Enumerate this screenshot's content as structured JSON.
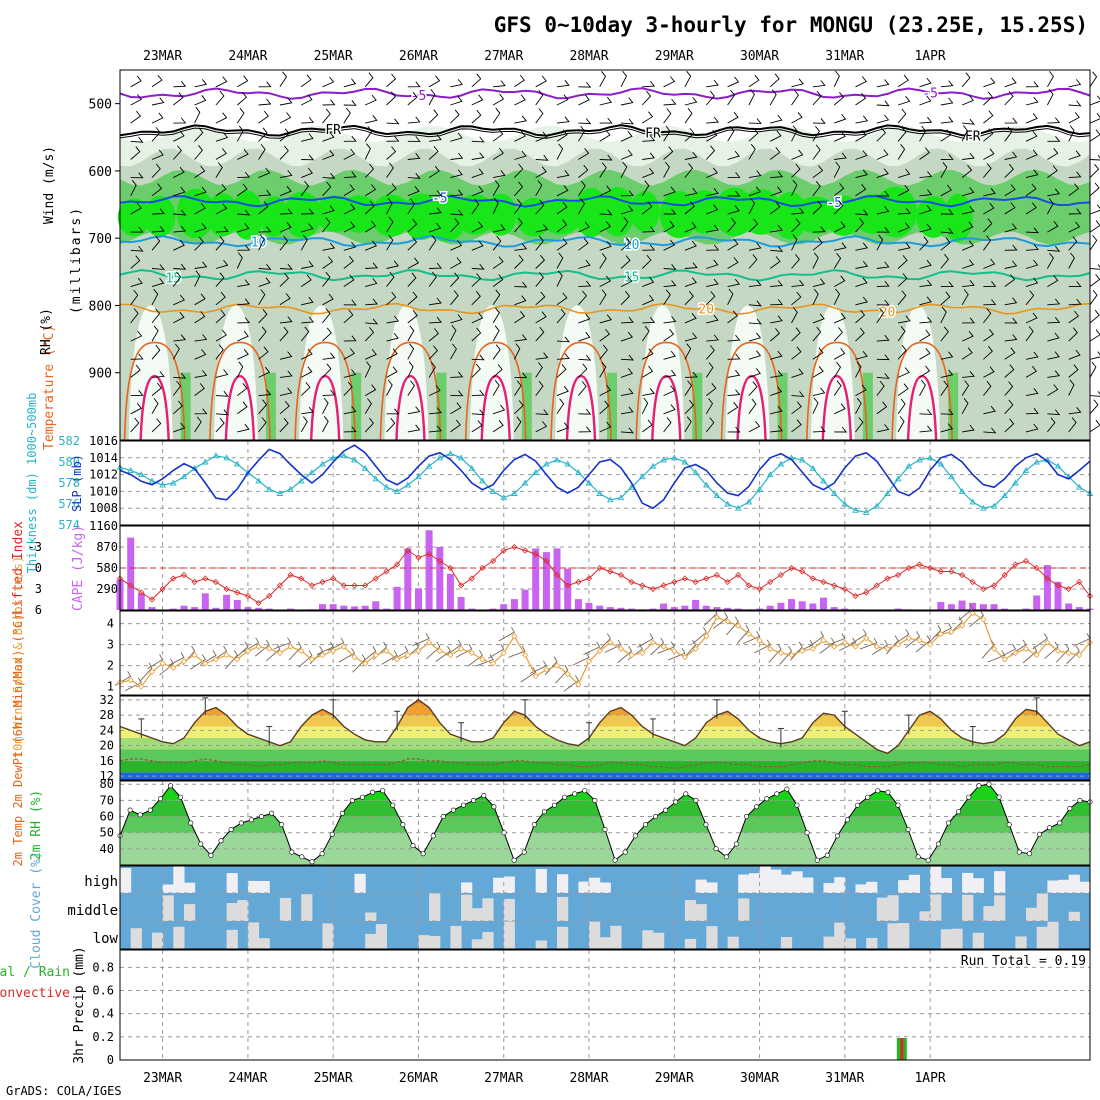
{
  "title": "GFS 0~10day 3-hourly for MONGU (23.25E, 15.25S)",
  "footer": "GrADS: COLA/IGES",
  "dates": [
    "23MAR",
    "24MAR",
    "25MAR",
    "26MAR",
    "27MAR",
    "28MAR",
    "29MAR",
    "30MAR",
    "31MAR",
    "1APR"
  ],
  "colors": {
    "rh_light": "#e6f2e6",
    "rh_mid": "#c4d8c4",
    "rh_green": "#6ccd6c",
    "rh_bright": "#19e619",
    "t_m5": "#8a1ec8",
    "t_fr": "#000000",
    "t_5": "#1450dc",
    "t_10": "#1e9bdc",
    "t_15": "#14be8c",
    "t_20": "#e6961e",
    "t_25": "#e6641e",
    "t_30": "#e61e78",
    "slp": "#1432c8",
    "thick": "#28b4c8",
    "li": "#dc2828",
    "cape": "#c864f0",
    "wind": "#e6a03c",
    "barb": "#786450",
    "cloud": "#64a8d8",
    "cloud_clear": "#f0f0f4",
    "rain_total": "#28b428",
    "rain_conv": "#dc2828"
  },
  "chart_data": [
    {
      "type": "heatmap",
      "panel": "upper-air",
      "ylabel": "(millibars)",
      "legend": [
        "Wind (m/s)",
        "Temperature (°C)",
        "RH (%)"
      ],
      "yticks": [
        500,
        600,
        700,
        800,
        900
      ],
      "ylim": [
        1000,
        450
      ],
      "contours": [
        {
          "label": "-5",
          "level": 485
        },
        {
          "label": "FR",
          "level": 540
        },
        {
          "label": "-5",
          "level": 645
        },
        {
          "label": "10",
          "level": 705
        },
        {
          "label": "15",
          "level": 755
        },
        {
          "label": "20",
          "level": 805
        }
      ]
    },
    {
      "type": "line",
      "panel": "slp-thickness",
      "ylabel_left": "Thickness (dm) 1000~500mb",
      "ylabel_right": "SLP (mb)",
      "ylim_left": [
        574,
        582
      ],
      "ylim_right": [
        1006,
        1016
      ],
      "yticks_left": [
        574,
        576,
        578,
        580,
        582
      ],
      "yticks_right": [
        1008,
        1010,
        1012,
        1014,
        1016
      ],
      "series": [
        {
          "name": "SLP",
          "values": [
            1012.5,
            1012,
            1011.2,
            1010.8,
            1011.5,
            1012.5,
            1013.3,
            1012.7,
            1011,
            1009.2,
            1009,
            1010.3,
            1012.2,
            1013.7,
            1015,
            1014.5,
            1013.2,
            1012,
            1011,
            1012,
            1013.5,
            1014.8,
            1015.5,
            1014.6,
            1013,
            1011.4,
            1010.8,
            1011.6,
            1013,
            1014.2,
            1014.6,
            1013.8,
            1012.5,
            1011,
            1010.2,
            1010.8,
            1012.5,
            1013.8,
            1014.4,
            1013.6,
            1012,
            1010.5,
            1009.8,
            1010.5,
            1012,
            1013.5,
            1013.8,
            1012.8,
            1011,
            1008.6,
            1008,
            1009,
            1011,
            1012.8,
            1013.2,
            1012.5,
            1011,
            1009.8,
            1009.5,
            1010.6,
            1012.6,
            1014,
            1014.5,
            1013.8,
            1012.3,
            1010.8,
            1010.2,
            1011,
            1012.8,
            1014.2,
            1014.6,
            1013.6,
            1011.8,
            1010,
            1009.5,
            1010.4,
            1012.5,
            1014,
            1014.4,
            1013.5,
            1012,
            1010.8,
            1010.5,
            1011.5,
            1013,
            1014,
            1014.5,
            1013.6,
            1012,
            1011.5,
            1012.5,
            1013.6
          ]
        },
        {
          "name": "Thickness",
          "values": [
            579.5,
            579.2,
            578.8,
            578.2,
            577.8,
            578,
            578.6,
            579.4,
            580,
            580.6,
            580.4,
            579.8,
            579,
            578.2,
            577.4,
            577,
            577.4,
            578.2,
            579,
            579.8,
            580.4,
            580.6,
            580.2,
            579.4,
            578.4,
            577.6,
            577.2,
            577.8,
            578.6,
            579.6,
            580.4,
            580.8,
            580.4,
            579.4,
            578.2,
            577.2,
            576.6,
            577,
            578,
            579,
            579.8,
            580.2,
            579.8,
            579,
            578,
            577,
            576.4,
            576.6,
            577.6,
            578.6,
            579.6,
            580.2,
            580.4,
            580,
            579,
            577.8,
            576.8,
            576,
            575.6,
            576.2,
            577.4,
            578.8,
            579.8,
            580.4,
            580.2,
            579.4,
            578.2,
            577,
            576,
            575.4,
            575.2,
            575.8,
            577,
            578.4,
            579.6,
            580.2,
            580.4,
            579.8,
            578.6,
            577.2,
            576.2,
            575.6,
            575.8,
            576.8,
            578,
            579.2,
            580,
            580.2,
            579.6,
            578.6,
            577.6,
            577
          ]
        }
      ]
    },
    {
      "type": "bar",
      "panel": "cape-li",
      "ylabel_left": "Lifted Index",
      "ylabel_right": "CAPE (J/kg)",
      "yticks_left": [
        "-3",
        "0",
        "3",
        "6"
      ],
      "yticks_right": [
        "290",
        "580",
        "870",
        "1160"
      ],
      "ylim_left": [
        6,
        -6
      ],
      "ylim_right": [
        0,
        1160
      ],
      "series": [
        {
          "name": "CAPE",
          "values": [
            420,
            1000,
            230,
            40,
            0,
            20,
            60,
            40,
            230,
            30,
            210,
            140,
            40,
            30,
            20,
            0,
            20,
            0,
            10,
            80,
            80,
            60,
            50,
            60,
            120,
            20,
            320,
            850,
            300,
            1100,
            870,
            500,
            180,
            20,
            0,
            20,
            80,
            150,
            280,
            850,
            800,
            850,
            570,
            150,
            100,
            60,
            40,
            30,
            20,
            10,
            20,
            90,
            40,
            60,
            140,
            60,
            40,
            30,
            20,
            10,
            20,
            60,
            100,
            150,
            120,
            90,
            170,
            40,
            20,
            10,
            0,
            0,
            0,
            20,
            10,
            0,
            0,
            110,
            80,
            130,
            100,
            80,
            80,
            20,
            0,
            20,
            200,
            620,
            390,
            90,
            40,
            20
          ]
        },
        {
          "name": "Lifted Index",
          "values": [
            1.5,
            2.5,
            3.5,
            4.5,
            3,
            1.5,
            1,
            2,
            1.5,
            2,
            3,
            3.5,
            4,
            5,
            4,
            2.5,
            1,
            1.5,
            2.5,
            2,
            1.5,
            2.5,
            2.5,
            2.5,
            1.5,
            0.5,
            -0.5,
            -2.5,
            -1.5,
            -2,
            -1,
            0,
            2.5,
            1.5,
            0,
            -1,
            -2.5,
            -3,
            -2.5,
            -2,
            -1,
            1,
            2.5,
            2,
            1.5,
            0,
            0.5,
            1,
            2,
            2.5,
            3,
            2.5,
            2,
            1.5,
            2,
            1.5,
            1,
            2,
            1,
            2.5,
            3,
            2,
            1,
            0,
            0.5,
            1.5,
            2,
            2.5,
            3,
            4,
            3.5,
            2.5,
            1.5,
            1,
            0,
            -0.5,
            0,
            0.5,
            0.5,
            1,
            2,
            3,
            2.5,
            1,
            -0.5,
            -1,
            0,
            1.5,
            2.5,
            3,
            2,
            4
          ]
        }
      ]
    },
    {
      "type": "line",
      "panel": "wind10m",
      "ylabel": "10m Wind Speed & Barbs (m/s)",
      "yticks": [
        1,
        2,
        3,
        4
      ],
      "ylim": [
        0.6,
        4.6
      ],
      "series": [
        {
          "name": "Wind Speed",
          "values": [
            1.2,
            1.3,
            1,
            1.7,
            2.1,
            1.9,
            2.2,
            2.5,
            2.1,
            2.3,
            2.5,
            2.3,
            2.7,
            2.9,
            2.8,
            2.6,
            2.9,
            2.7,
            2.3,
            2.5,
            2.7,
            2.9,
            2.4,
            2.1,
            2.5,
            2.7,
            2.3,
            2.5,
            2.7,
            3.1,
            2.7,
            2.5,
            2.8,
            2.6,
            2.3,
            2.1,
            2.6,
            3.4,
            2.5,
            1.5,
            1.8,
            2,
            1.6,
            1.1,
            2.2,
            2.7,
            3.1,
            2.8,
            2.5,
            2.6,
            3.1,
            2.9,
            2.7,
            2.4,
            2.8,
            3.4,
            4.3,
            4.1,
            3.9,
            3.5,
            3.2,
            2.8,
            2.6,
            2.5,
            2.7,
            2.8,
            3.2,
            2.9,
            3.1,
            2.9,
            3.3,
            2.9,
            2.8,
            3,
            3.3,
            3.2,
            3,
            3.5,
            3.6,
            3.9,
            4.5,
            4.2,
            2.8,
            2.3,
            2.6,
            2.8,
            2.5,
            3.1,
            2.7,
            2.6,
            2.5,
            3.1
          ]
        }
      ]
    },
    {
      "type": "area",
      "panel": "temp2m",
      "ylabel": "2m Temp 2m DewPt (6hr Min/Max) (°C)",
      "yticks": [
        12,
        16,
        20,
        24,
        28,
        32
      ],
      "ylim": [
        11,
        33
      ],
      "series": [
        {
          "name": "2m Temp",
          "values": [
            25,
            24,
            23,
            22,
            21,
            20.5,
            22,
            26,
            29,
            30,
            28,
            25,
            23,
            22,
            21,
            20,
            21,
            25,
            28,
            29.5,
            28,
            25,
            23,
            21.5,
            21,
            21,
            25,
            30,
            32,
            30,
            26,
            23,
            22,
            21,
            21,
            22,
            26,
            29,
            28,
            25,
            23,
            21.5,
            20.5,
            20,
            22,
            26,
            29,
            30,
            28,
            25,
            23,
            22,
            21,
            20,
            22,
            26,
            28,
            29,
            27,
            24,
            22,
            21,
            20.5,
            21,
            22,
            26,
            28.5,
            28,
            25,
            23,
            21,
            19,
            18,
            20,
            24,
            28,
            29,
            27,
            24,
            22,
            21,
            20.5,
            21,
            23,
            27,
            29.5,
            29,
            26,
            23,
            21.5,
            20,
            21
          ]
        },
        {
          "name": "2m DewPt",
          "values": [
            16,
            16.5,
            16.5,
            16,
            15.5,
            15.5,
            15.5,
            16,
            16.5,
            16,
            15.5,
            15,
            15,
            14.5,
            15,
            15,
            15.5,
            15.5,
            15.5,
            16,
            15.5,
            15,
            15,
            15,
            15,
            15,
            15.5,
            16.5,
            16.5,
            16,
            16,
            15.5,
            15.5,
            15,
            15,
            15,
            15.5,
            16,
            16,
            15.5,
            15.5,
            15,
            15,
            14.5,
            14.5,
            15,
            15.5,
            15.5,
            15,
            15,
            14.5,
            14.5,
            14,
            14.5,
            15,
            15.5,
            15.5,
            15.5,
            15,
            15,
            14.5,
            14.5,
            14.5,
            15,
            15.5,
            16,
            16,
            15.5,
            15,
            15,
            14.5,
            14.5,
            14.5,
            15,
            15.5,
            15.5,
            15.5,
            15,
            15,
            14.5,
            15,
            15,
            15,
            15.5,
            15.5,
            15,
            15,
            14.5,
            14.5,
            14.5,
            14.5,
            15
          ]
        }
      ]
    },
    {
      "type": "area",
      "panel": "rh2m",
      "ylabel": "2m RH (%)",
      "yticks": [
        40,
        50,
        60,
        70,
        80
      ],
      "ylim": [
        30,
        82
      ],
      "series": [
        {
          "name": "2m RH",
          "values": [
            48,
            64,
            61,
            64,
            71,
            79,
            72,
            56,
            43,
            36,
            45,
            52,
            56,
            58,
            60,
            62,
            55,
            38,
            35,
            32,
            37,
            49,
            62,
            70,
            72,
            75,
            76,
            67,
            55,
            42,
            37,
            48,
            60,
            64,
            67,
            70,
            73,
            66,
            50,
            33,
            38,
            55,
            63,
            67,
            72,
            74,
            76,
            70,
            52,
            33,
            38,
            48,
            55,
            60,
            64,
            69,
            74,
            70,
            55,
            40,
            35,
            43,
            60,
            66,
            71,
            74,
            77,
            67,
            50,
            33,
            36,
            48,
            58,
            67,
            72,
            76,
            75,
            67,
            52,
            35,
            33,
            43,
            56,
            63,
            72,
            79,
            80,
            72,
            55,
            38,
            37,
            49,
            53,
            56,
            65,
            70,
            69
          ]
        }
      ]
    },
    {
      "type": "area",
      "panel": "cloud",
      "ylabel": "Cloud Cover (%)",
      "levels": [
        "high",
        "middle",
        "low"
      ]
    },
    {
      "type": "bar",
      "panel": "precip",
      "ylabel": "3hr Precip (mm)",
      "legend": [
        "Total / Rain",
        "Convective"
      ],
      "annotation": "Run Total = 0.19",
      "yticks": [
        "0",
        "0.2",
        "0.4",
        "0.6",
        "0.8"
      ],
      "ylim": [
        0,
        0.95
      ],
      "series": [
        {
          "name": "Total",
          "index": 71,
          "values": [
            0.19
          ]
        },
        {
          "name": "Convective",
          "index": 71,
          "values": [
            0.19
          ]
        }
      ]
    }
  ]
}
